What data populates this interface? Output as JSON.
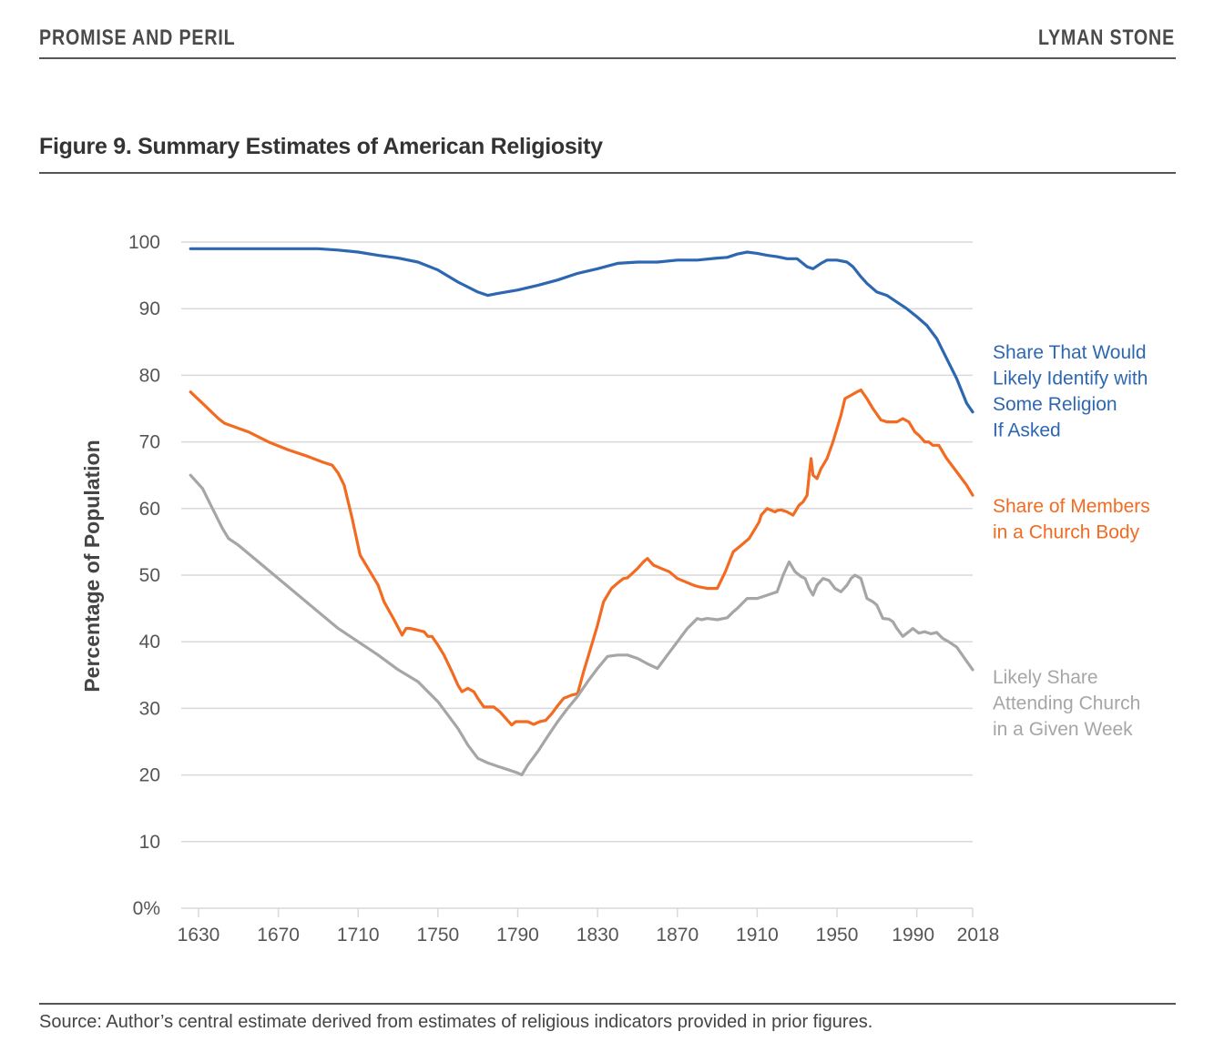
{
  "header": {
    "left": "PROMISE AND PERIL",
    "right": "LYMAN STONE"
  },
  "figure_title": "Figure 9. Summary Estimates of American Religiosity",
  "source": "Source: Author’s central estimate derived from estimates of religious indicators provided in prior figures.",
  "colors": {
    "identify": "#2e67b1",
    "members": "#f26b21",
    "attending": "#a6a6a6",
    "grid": "#d9d9d9"
  },
  "chart_data": {
    "type": "line",
    "title": "Figure 9. Summary Estimates of American Religiosity",
    "xlabel": "",
    "ylabel": "Percentage of Population",
    "xlim": [
      1630,
      2018
    ],
    "ylim": [
      0,
      100
    ],
    "grid": true,
    "x_ticks": [
      1630,
      1670,
      1710,
      1750,
      1790,
      1830,
      1870,
      1910,
      1950,
      1990,
      2018
    ],
    "x_tick_labels": [
      "1630",
      "1670",
      "1710",
      "1750",
      "1790",
      "1830",
      "1870",
      "1910",
      "1950",
      "1990",
      "2018"
    ],
    "y_ticks": [
      0,
      10,
      20,
      30,
      40,
      50,
      60,
      70,
      80,
      90,
      100
    ],
    "y_tick_labels": [
      "0%",
      "10",
      "20",
      "30",
      "40",
      "50",
      "60",
      "70",
      "80",
      "90",
      "100"
    ],
    "legend": "direct-labels-right",
    "series": [
      {
        "name": "Share That Would Likely Identify with Some Religion If Asked",
        "label_lines": [
          "Share That Would",
          "Likely Identify with",
          "Some Religion",
          "If Asked"
        ],
        "color_key": "identify",
        "x": [
          1626,
          1690,
          1700,
          1710,
          1720,
          1730,
          1740,
          1750,
          1760,
          1770,
          1775,
          1780,
          1790,
          1800,
          1810,
          1820,
          1830,
          1840,
          1850,
          1860,
          1870,
          1880,
          1890,
          1895,
          1900,
          1905,
          1910,
          1915,
          1920,
          1925,
          1930,
          1935,
          1938,
          1942,
          1945,
          1950,
          1955,
          1958,
          1962,
          1965,
          1970,
          1975,
          1980,
          1985,
          1990,
          1995,
          2000,
          2005,
          2010,
          2015,
          2018
        ],
        "y": [
          99,
          99,
          98.8,
          98.5,
          98,
          97.6,
          97,
          95.8,
          94,
          92.5,
          92,
          92.3,
          92.8,
          93.5,
          94.3,
          95.3,
          96,
          96.8,
          97,
          97,
          97.3,
          97.3,
          97.6,
          97.7,
          98.2,
          98.5,
          98.3,
          98,
          97.8,
          97.5,
          97.5,
          96.3,
          96,
          96.8,
          97.3,
          97.3,
          97,
          96.3,
          94.8,
          93.8,
          92.5,
          92,
          91,
          90,
          88.8,
          87.5,
          85.5,
          82.5,
          79.5,
          75.8,
          74.5
        ]
      },
      {
        "name": "Share of Members in a Church Body",
        "label_lines": [
          "Share of Members",
          "in a Church Body"
        ],
        "color_key": "members",
        "x": [
          1626,
          1633,
          1640,
          1643,
          1655,
          1665,
          1675,
          1685,
          1692,
          1697,
          1700,
          1703,
          1707,
          1711,
          1716,
          1720,
          1723,
          1728,
          1732,
          1734,
          1736,
          1739,
          1743,
          1745,
          1747,
          1750,
          1753,
          1757,
          1760,
          1762,
          1765,
          1768,
          1770,
          1773,
          1775,
          1778,
          1781,
          1784,
          1787,
          1789,
          1791,
          1792,
          1795,
          1798,
          1801,
          1804,
          1807,
          1810,
          1813,
          1817,
          1820,
          1823,
          1826,
          1830,
          1833,
          1837,
          1840,
          1843,
          1845,
          1850,
          1853,
          1855,
          1858,
          1862,
          1866,
          1870,
          1874,
          1878,
          1880,
          1885,
          1890,
          1894,
          1898,
          1902,
          1906,
          1909,
          1911,
          1912,
          1915,
          1919,
          1920,
          1922,
          1925,
          1928,
          1931,
          1933,
          1935,
          1936,
          1937,
          1938,
          1940,
          1942,
          1945,
          1948,
          1950,
          1952,
          1954,
          1957,
          1960,
          1962,
          1965,
          1968,
          1972,
          1975,
          1978,
          1980,
          1983,
          1986,
          1989,
          1991,
          1994,
          1996,
          1998,
          2001,
          2005,
          2010,
          2015,
          2018
        ],
        "y": [
          77.5,
          75.5,
          73.5,
          72.8,
          71.5,
          70,
          68.8,
          67.8,
          67,
          66.5,
          65.3,
          63.5,
          58.5,
          53,
          50.5,
          48.5,
          46,
          43.3,
          41,
          42,
          42,
          41.8,
          41.5,
          40.8,
          40.8,
          39.5,
          38,
          35.5,
          33.5,
          32.5,
          33,
          32.5,
          31.5,
          30.2,
          30.2,
          30.2,
          29.5,
          28.5,
          27.5,
          28,
          28,
          28,
          28,
          27.6,
          28,
          28.2,
          29.2,
          30.4,
          31.5,
          32,
          32.2,
          35.5,
          38.5,
          42.5,
          46,
          48,
          48.8,
          49.5,
          49.6,
          51,
          52,
          52.5,
          51.5,
          51,
          50.5,
          49.5,
          49,
          48.5,
          48.3,
          48,
          48,
          50.5,
          53.5,
          54.5,
          55.5,
          57,
          58,
          59,
          60,
          59.5,
          59.7,
          59.8,
          59.5,
          59,
          60.5,
          61,
          62,
          65,
          67.5,
          65,
          64.5,
          66,
          67.5,
          70,
          72,
          74,
          76.5,
          77,
          77.5,
          77.8,
          76.5,
          75,
          73.3,
          73,
          73,
          73,
          73.5,
          73,
          71.5,
          71,
          70,
          70,
          69.5,
          69.5,
          67.5,
          65.5,
          63.5,
          62
        ]
      },
      {
        "name": "Likely Share Attending Church in a Given Week",
        "label_lines": [
          "Likely Share",
          "Attending Church",
          "in a Given Week"
        ],
        "color_key": "attending",
        "x": [
          1626,
          1632,
          1637,
          1642,
          1645,
          1650,
          1660,
          1670,
          1680,
          1690,
          1700,
          1710,
          1720,
          1730,
          1740,
          1745,
          1750,
          1755,
          1760,
          1765,
          1770,
          1775,
          1780,
          1785,
          1790,
          1792,
          1795,
          1800,
          1805,
          1810,
          1815,
          1820,
          1825,
          1830,
          1835,
          1840,
          1843,
          1845,
          1850,
          1855,
          1860,
          1865,
          1870,
          1875,
          1880,
          1882,
          1885,
          1890,
          1895,
          1898,
          1900,
          1905,
          1910,
          1915,
          1920,
          1923,
          1926,
          1929,
          1932,
          1934,
          1936,
          1938,
          1940,
          1943,
          1946,
          1949,
          1952,
          1955,
          1957,
          1959,
          1962,
          1965,
          1968,
          1970,
          1973,
          1976,
          1978,
          1980,
          1983,
          1986,
          1988,
          1991,
          1994,
          1997,
          2000,
          2003,
          2006,
          2010,
          2014,
          2018
        ],
        "y": [
          65,
          63,
          60,
          57,
          55.5,
          54.5,
          52,
          49.5,
          47,
          44.5,
          42,
          40,
          38,
          35.8,
          34,
          32.5,
          31,
          29,
          27,
          24.5,
          22.5,
          21.8,
          21.3,
          20.8,
          20.3,
          20,
          21.5,
          23.5,
          25.8,
          28,
          30,
          31.8,
          34,
          36,
          37.8,
          38,
          38,
          38,
          37.5,
          36.7,
          36,
          38,
          40,
          42,
          43.5,
          43.3,
          43.5,
          43.3,
          43.6,
          44.5,
          45,
          46.5,
          46.5,
          47,
          47.5,
          50,
          52,
          50.5,
          49.8,
          49.5,
          48,
          47,
          48.5,
          49.5,
          49.2,
          48,
          47.5,
          48.5,
          49.5,
          50,
          49.5,
          46.5,
          46,
          45.5,
          43.5,
          43.4,
          43,
          42,
          40.8,
          41.5,
          42,
          41.3,
          41.5,
          41.2,
          41.4,
          40.5,
          40,
          39.2,
          37.5,
          35.8
        ]
      }
    ]
  }
}
